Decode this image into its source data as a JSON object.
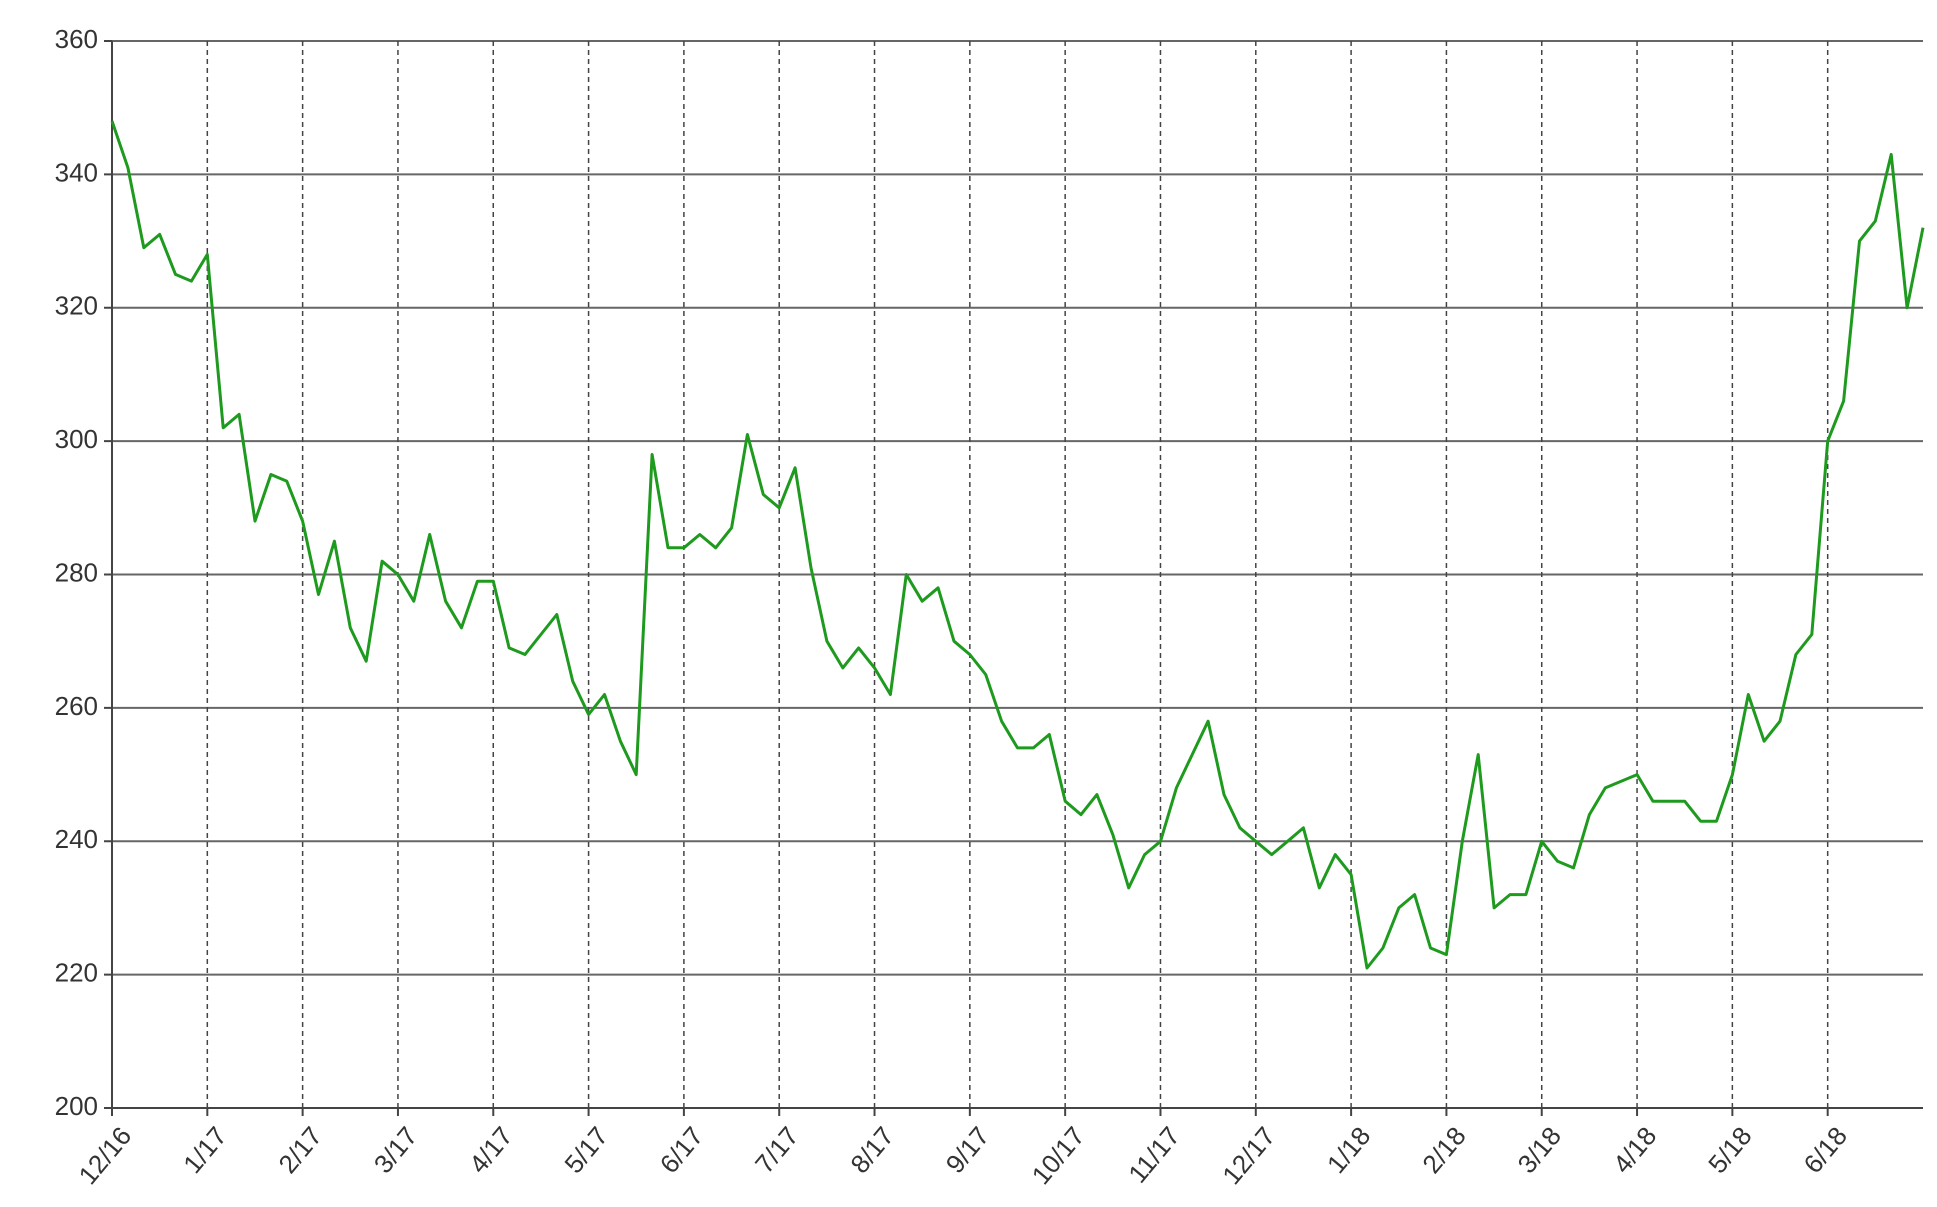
{
  "chart_data": {
    "type": "line",
    "color": "#1e9a1e",
    "grid": true,
    "ylim": [
      200,
      360
    ],
    "yticks": [
      200,
      220,
      240,
      260,
      280,
      300,
      320,
      340,
      360
    ],
    "categories": [
      "12/16",
      null,
      null,
      null,
      null,
      null,
      "1/17",
      null,
      null,
      null,
      null,
      null,
      "2/17",
      null,
      null,
      null,
      null,
      null,
      "3/17",
      null,
      null,
      null,
      null,
      null,
      "4/17",
      null,
      null,
      null,
      null,
      null,
      "5/17",
      null,
      null,
      null,
      null,
      null,
      "6/17",
      null,
      null,
      null,
      null,
      null,
      "7/17",
      null,
      null,
      null,
      null,
      null,
      "8/17",
      null,
      null,
      null,
      null,
      null,
      "9/17",
      null,
      null,
      null,
      null,
      null,
      "10/17",
      null,
      null,
      null,
      null,
      null,
      "11/17",
      null,
      null,
      null,
      null,
      null,
      "12/17",
      null,
      null,
      null,
      null,
      null,
      "1/18",
      null,
      null,
      null,
      null,
      null,
      "2/18",
      null,
      null,
      null,
      null,
      null,
      "3/18",
      null,
      null,
      null,
      null,
      null,
      "4/18",
      null,
      null,
      null,
      null,
      null,
      "5/18",
      null,
      null,
      null,
      null,
      null,
      "6/18",
      null,
      null,
      null,
      null,
      null,
      null
    ],
    "values": [
      348,
      341,
      329,
      331,
      325,
      324,
      328,
      302,
      304,
      288,
      295,
      294,
      288,
      277,
      285,
      272,
      267,
      282,
      280,
      276,
      286,
      276,
      272,
      279,
      279,
      269,
      268,
      271,
      274,
      264,
      259,
      262,
      255,
      250,
      298,
      284,
      284,
      286,
      284,
      287,
      301,
      292,
      290,
      296,
      281,
      270,
      266,
      269,
      266,
      262,
      280,
      276,
      278,
      270,
      268,
      265,
      258,
      254,
      254,
      256,
      246,
      244,
      247,
      241,
      233,
      238,
      240,
      248,
      253,
      258,
      247,
      242,
      240,
      238,
      240,
      242,
      233,
      238,
      235,
      221,
      224,
      230,
      232,
      224,
      223,
      240,
      253,
      230,
      232,
      232,
      240,
      237,
      236,
      244,
      248,
      249,
      250,
      246,
      246,
      246,
      243,
      243,
      250,
      262,
      255,
      258,
      268,
      271,
      300,
      306,
      330,
      333,
      343,
      320,
      332
    ]
  }
}
